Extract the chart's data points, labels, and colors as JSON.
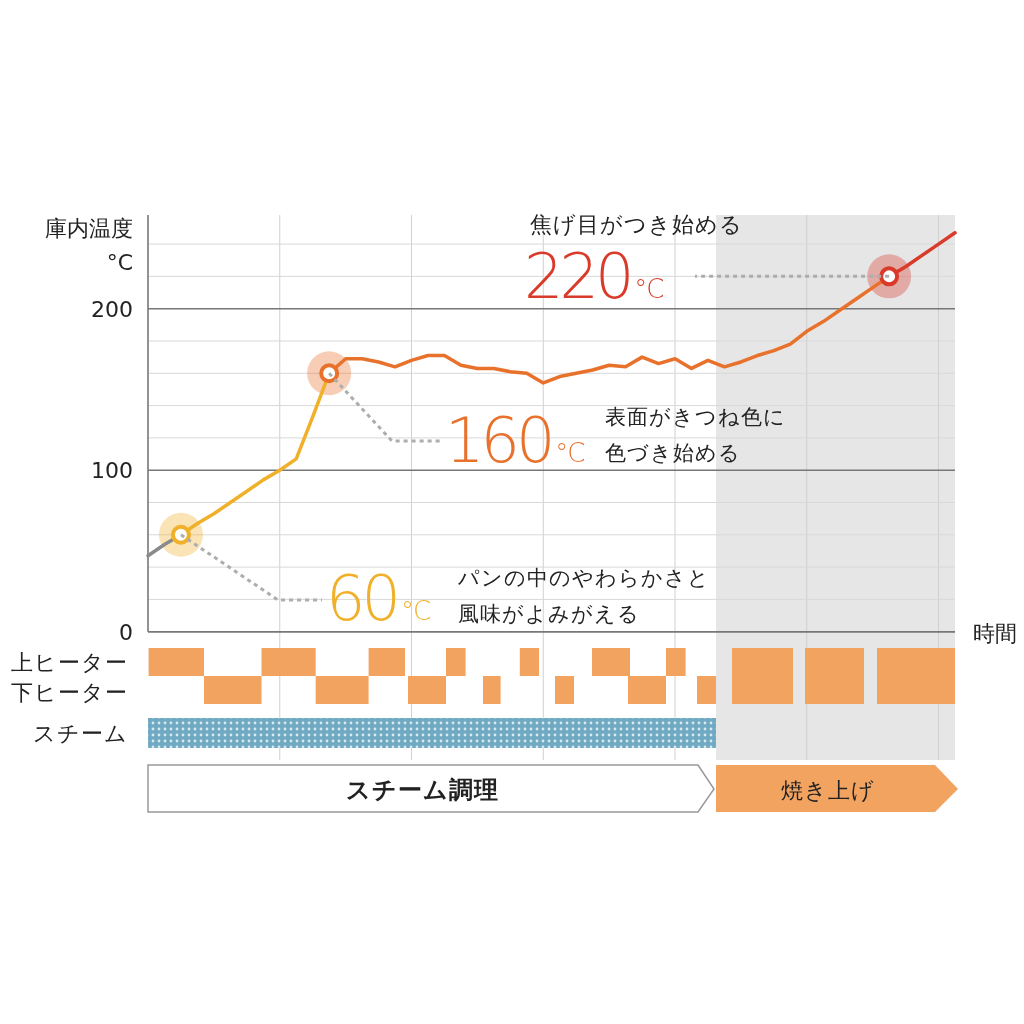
{
  "chart_data": {
    "type": "line",
    "ylabel": "庫内温度\n°C",
    "xlabel": "時間",
    "categories": [
      null,
      null,
      null,
      null,
      null,
      null,
      null,
      null,
      null,
      null,
      null,
      null,
      null,
      null,
      null,
      null,
      null,
      null,
      null,
      null,
      null,
      null,
      null,
      null,
      null,
      null,
      null,
      null,
      null,
      null,
      null,
      null,
      null,
      null,
      null,
      null,
      null,
      null,
      null,
      null,
      null,
      null,
      null,
      null,
      null,
      null,
      null,
      null,
      null,
      null
    ],
    "series": [
      {
        "color": "#8a8a8a",
        "values": [
          47,
          54,
          60,
          null,
          null,
          null,
          null,
          null,
          null,
          null,
          null,
          null,
          null,
          null,
          null,
          null,
          null,
          null,
          null,
          null,
          null,
          null,
          null,
          null,
          null,
          null,
          null,
          null,
          null,
          null,
          null,
          null,
          null,
          null,
          null,
          null,
          null,
          null,
          null,
          null,
          null,
          null,
          null,
          null,
          null,
          null,
          null,
          null,
          null,
          null
        ]
      },
      {
        "color": "#f0b02a",
        "values": [
          null,
          null,
          60,
          67,
          73,
          80,
          87,
          94,
          100,
          107,
          133,
          160,
          null,
          null,
          null,
          null,
          null,
          null,
          null,
          null,
          null,
          null,
          null,
          null,
          null,
          null,
          null,
          null,
          null,
          null,
          null,
          null,
          null,
          null,
          null,
          null,
          null,
          null,
          null,
          null,
          null,
          null,
          null,
          null,
          null,
          null,
          null,
          null,
          null,
          null
        ]
      },
      {
        "color": "#e8712b",
        "values": [
          null,
          null,
          null,
          null,
          null,
          null,
          null,
          null,
          null,
          null,
          null,
          160,
          169,
          169,
          167,
          164,
          168,
          171,
          171,
          165,
          163,
          163,
          161,
          160,
          154,
          158,
          160,
          162,
          165,
          164,
          170,
          166,
          169,
          163,
          168,
          164,
          167,
          171,
          174,
          178,
          186,
          192,
          199,
          206,
          213,
          220,
          null,
          null,
          null,
          null
        ]
      },
      {
        "color": "#d93a2a",
        "values": [
          null,
          null,
          null,
          null,
          null,
          null,
          null,
          null,
          null,
          null,
          null,
          null,
          null,
          null,
          null,
          null,
          null,
          null,
          null,
          null,
          null,
          null,
          null,
          null,
          null,
          null,
          null,
          null,
          null,
          null,
          null,
          null,
          null,
          null,
          null,
          null,
          null,
          null,
          null,
          null,
          null,
          null,
          null,
          null,
          null,
          220,
          226,
          233,
          240,
          247
        ]
      },
      {
        "type": "scatter",
        "marker": "circle",
        "color": "#f0b02a",
        "values": [
          null,
          null,
          60,
          null,
          null,
          null,
          null,
          null,
          null,
          null,
          null,
          null,
          null,
          null,
          null,
          null,
          null,
          null,
          null,
          null,
          null,
          null,
          null,
          null,
          null,
          null,
          null,
          null,
          null,
          null,
          null,
          null,
          null,
          null,
          null,
          null,
          null,
          null,
          null,
          null,
          null,
          null,
          null,
          null,
          null,
          null,
          null,
          null,
          null,
          null
        ]
      },
      {
        "type": "scatter",
        "marker": "circle",
        "color": "#e8712b",
        "values": [
          null,
          null,
          null,
          null,
          null,
          null,
          null,
          null,
          null,
          null,
          null,
          160,
          null,
          null,
          null,
          null,
          null,
          null,
          null,
          null,
          null,
          null,
          null,
          null,
          null,
          null,
          null,
          null,
          null,
          null,
          null,
          null,
          null,
          null,
          null,
          null,
          null,
          null,
          null,
          null,
          null,
          null,
          null,
          null,
          null,
          null,
          null,
          null,
          null,
          null
        ]
      },
      {
        "type": "scatter",
        "marker": "circle",
        "color": "#d93a2a",
        "values": [
          null,
          null,
          null,
          null,
          null,
          null,
          null,
          null,
          null,
          null,
          null,
          null,
          null,
          null,
          null,
          null,
          null,
          null,
          null,
          null,
          null,
          null,
          null,
          null,
          null,
          null,
          null,
          null,
          null,
          null,
          null,
          null,
          null,
          null,
          null,
          null,
          null,
          null,
          null,
          null,
          null,
          null,
          null,
          null,
          null,
          220,
          null,
          null,
          null,
          null
        ]
      }
    ],
    "ylim": [
      0,
      258
    ],
    "yticks": [
      0,
      {
        "value": 20,
        "label": null
      },
      {
        "value": 40,
        "label": null
      },
      {
        "value": 60,
        "label": null
      },
      {
        "value": 80,
        "label": null
      },
      100,
      {
        "value": 120,
        "label": null
      },
      {
        "value": 140,
        "label": null
      },
      {
        "value": 160,
        "label": null
      },
      {
        "value": 180,
        "label": null
      },
      200,
      {
        "value": 220,
        "label": null
      },
      {
        "value": 240,
        "label": null
      }
    ],
    "grid": true,
    "annotations": [
      "焦げ目がつき始める",
      "220°C",
      "160°C",
      "表面がきつね色に",
      "色づき始める",
      "60°C",
      "パンの中のやわらかさと",
      "風味がよみがえる",
      "上ヒーター",
      "下ヒーター",
      "スチーム",
      "スチーム調理",
      "焼き上げ"
    ]
  }
}
